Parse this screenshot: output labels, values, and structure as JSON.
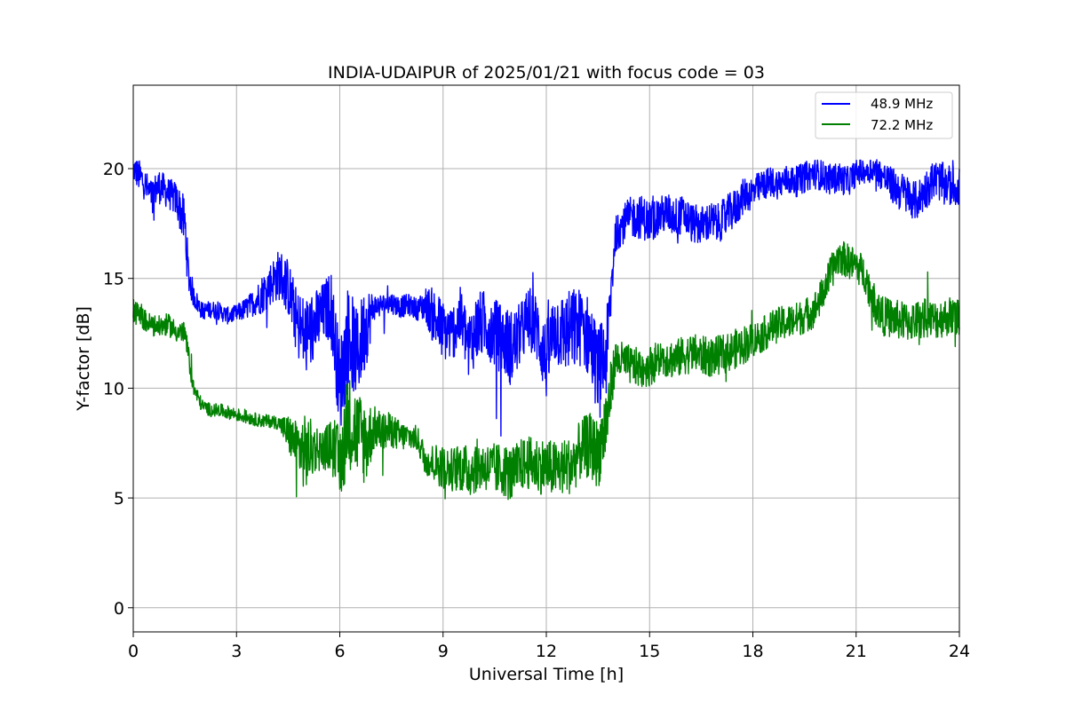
{
  "chart_data": {
    "type": "line",
    "title": "INDIA-UDAIPUR of 2025/01/21 with focus code = 03",
    "xlabel": "Universal Time [h]",
    "ylabel": "Y-factor [dB]",
    "xlim": [
      0,
      24
    ],
    "ylim": [
      -1.1,
      23.8
    ],
    "xticks": [
      0,
      3,
      6,
      9,
      12,
      15,
      18,
      21,
      24
    ],
    "yticks": [
      0,
      5,
      10,
      15,
      20
    ],
    "grid": true,
    "legend_position": "top-right",
    "series": [
      {
        "name": "48.9 MHz",
        "color": "#0000ff",
        "x": [
          0,
          0.25,
          0.5,
          0.75,
          1.0,
          1.25,
          1.5,
          1.6,
          1.75,
          2.0,
          2.25,
          2.5,
          2.75,
          3.0,
          3.25,
          3.5,
          3.75,
          4.0,
          4.25,
          4.5,
          4.75,
          5.0,
          5.25,
          5.5,
          5.75,
          6.0,
          6.25,
          6.5,
          6.75,
          7.0,
          7.25,
          7.5,
          7.75,
          8.0,
          8.25,
          8.5,
          8.75,
          9.0,
          9.25,
          9.5,
          9.75,
          10.0,
          10.25,
          10.5,
          10.75,
          11.0,
          11.25,
          11.5,
          11.75,
          12.0,
          12.25,
          12.5,
          12.75,
          13.0,
          13.25,
          13.5,
          13.75,
          14.0,
          14.25,
          14.5,
          14.75,
          15.0,
          15.25,
          15.5,
          15.75,
          16.0,
          16.25,
          16.5,
          16.75,
          17.0,
          17.25,
          17.5,
          17.75,
          18.0,
          18.25,
          18.5,
          18.75,
          19.0,
          19.25,
          19.5,
          19.75,
          20.0,
          20.25,
          20.5,
          20.75,
          21.0,
          21.25,
          21.5,
          21.75,
          22.0,
          22.25,
          22.5,
          22.75,
          23.0,
          23.25,
          23.5,
          23.75,
          24.0
        ],
        "values": [
          20.0,
          19.5,
          18.8,
          19.2,
          18.9,
          18.6,
          17.5,
          15.2,
          14.2,
          13.5,
          13.6,
          13.5,
          13.3,
          13.4,
          13.6,
          13.9,
          14.3,
          14.8,
          15.2,
          14.6,
          13.0,
          12.3,
          12.8,
          13.4,
          13.8,
          10.0,
          12.5,
          11.5,
          12.8,
          13.7,
          13.8,
          13.9,
          13.7,
          13.8,
          13.6,
          13.8,
          13.2,
          12.6,
          12.5,
          13.2,
          12.0,
          12.8,
          13.0,
          12.5,
          12.2,
          11.8,
          12.5,
          13.2,
          12.6,
          11.2,
          12.8,
          12.5,
          12.6,
          12.8,
          12.3,
          10.8,
          11.5,
          17.0,
          17.5,
          17.8,
          17.8,
          17.6,
          17.8,
          18.0,
          17.8,
          17.9,
          17.5,
          17.4,
          17.6,
          17.5,
          17.9,
          18.2,
          18.8,
          18.9,
          19.2,
          19.4,
          19.3,
          19.5,
          19.4,
          19.6,
          19.8,
          19.7,
          19.5,
          19.6,
          19.4,
          19.8,
          19.9,
          20.0,
          19.7,
          19.3,
          19.0,
          18.8,
          18.5,
          19.0,
          19.5,
          19.4,
          19.2,
          19.2
        ],
        "noise": [
          0.6,
          0.8,
          0.7,
          0.8,
          0.7,
          0.8,
          1.2,
          0.9,
          0.5,
          0.4,
          0.4,
          0.4,
          0.4,
          0.4,
          0.5,
          0.6,
          0.9,
          1.0,
          1.2,
          1.3,
          1.5,
          2.0,
          1.6,
          1.4,
          1.6,
          2.2,
          2.4,
          2.0,
          2.0,
          0.6,
          0.5,
          0.5,
          0.5,
          0.5,
          0.5,
          0.8,
          1.4,
          1.4,
          1.3,
          1.4,
          1.5,
          1.6,
          1.5,
          1.6,
          1.6,
          1.8,
          1.4,
          1.5,
          1.6,
          1.8,
          1.8,
          1.8,
          2.0,
          1.8,
          1.9,
          2.0,
          2.0,
          0.8,
          0.9,
          1.0,
          1.0,
          1.0,
          0.9,
          0.9,
          0.9,
          0.9,
          0.9,
          0.9,
          0.9,
          0.9,
          0.9,
          0.9,
          0.8,
          0.8,
          0.7,
          0.7,
          0.7,
          0.7,
          0.7,
          0.7,
          0.7,
          0.7,
          0.7,
          0.7,
          0.7,
          0.6,
          0.6,
          0.6,
          0.7,
          0.8,
          0.9,
          0.9,
          0.9,
          0.9,
          0.9,
          0.9,
          0.9,
          0.9
        ]
      },
      {
        "name": "72.2 MHz",
        "color": "#008000",
        "x": [
          0,
          0.25,
          0.5,
          0.75,
          1.0,
          1.25,
          1.5,
          1.6,
          1.75,
          2.0,
          2.25,
          2.5,
          2.75,
          3.0,
          3.25,
          3.5,
          3.75,
          4.0,
          4.25,
          4.5,
          4.75,
          5.0,
          5.25,
          5.5,
          5.75,
          6.0,
          6.25,
          6.5,
          6.75,
          7.0,
          7.25,
          7.5,
          7.75,
          8.0,
          8.25,
          8.5,
          8.75,
          9.0,
          9.25,
          9.5,
          9.75,
          10.0,
          10.25,
          10.5,
          10.75,
          11.0,
          11.25,
          11.5,
          11.75,
          12.0,
          12.25,
          12.5,
          12.75,
          13.0,
          13.25,
          13.5,
          13.75,
          14.0,
          14.25,
          14.5,
          14.75,
          15.0,
          15.25,
          15.5,
          15.75,
          16.0,
          16.25,
          16.5,
          16.75,
          17.0,
          17.25,
          17.5,
          17.75,
          18.0,
          18.25,
          18.5,
          18.75,
          19.0,
          19.25,
          19.5,
          19.75,
          20.0,
          20.25,
          20.5,
          20.75,
          21.0,
          21.25,
          21.5,
          21.75,
          22.0,
          22.25,
          22.5,
          22.75,
          23.0,
          23.25,
          23.5,
          23.75,
          24.0
        ],
        "values": [
          13.5,
          13.2,
          12.9,
          12.8,
          12.9,
          12.6,
          12.5,
          11.5,
          10.0,
          9.2,
          9.0,
          9.0,
          8.9,
          8.8,
          8.7,
          8.6,
          8.5,
          8.5,
          8.4,
          7.9,
          7.4,
          7.0,
          7.3,
          7.2,
          7.4,
          6.5,
          8.5,
          8.0,
          7.5,
          8.2,
          8.0,
          8.1,
          7.8,
          7.8,
          7.7,
          6.7,
          6.6,
          6.4,
          6.3,
          6.4,
          6.2,
          6.5,
          6.4,
          6.3,
          6.3,
          6.0,
          6.5,
          6.6,
          6.5,
          6.4,
          6.3,
          6.4,
          6.5,
          7.2,
          7.4,
          7.0,
          8.5,
          11.3,
          11.2,
          11.0,
          10.9,
          11.0,
          11.3,
          11.4,
          11.3,
          11.5,
          11.6,
          11.5,
          11.4,
          11.5,
          11.6,
          11.8,
          12.0,
          12.2,
          12.4,
          12.7,
          12.9,
          13.0,
          13.1,
          13.3,
          13.5,
          14.2,
          15.2,
          16.0,
          15.8,
          15.6,
          15.2,
          14.0,
          13.3,
          13.2,
          13.1,
          13.0,
          13.1,
          13.2,
          13.1,
          13.2,
          13.3,
          13.2
        ],
        "noise": [
          0.6,
          0.5,
          0.5,
          0.5,
          0.5,
          0.5,
          0.5,
          0.5,
          0.4,
          0.3,
          0.3,
          0.3,
          0.3,
          0.3,
          0.3,
          0.3,
          0.3,
          0.3,
          0.3,
          0.9,
          1.1,
          1.8,
          1.2,
          0.9,
          1.2,
          1.8,
          2.2,
          2.0,
          2.0,
          1.0,
          0.9,
          0.8,
          0.7,
          0.6,
          0.6,
          0.7,
          0.9,
          1.0,
          1.0,
          1.1,
          1.2,
          1.2,
          1.1,
          1.2,
          1.2,
          1.3,
          1.2,
          1.2,
          1.3,
          1.3,
          1.3,
          1.3,
          1.3,
          1.4,
          1.5,
          1.6,
          1.8,
          0.9,
          0.9,
          0.9,
          0.9,
          0.9,
          0.9,
          0.9,
          0.9,
          0.9,
          0.9,
          0.9,
          0.9,
          0.9,
          0.9,
          0.9,
          0.9,
          0.8,
          0.8,
          0.8,
          0.8,
          0.8,
          0.8,
          0.8,
          0.8,
          0.8,
          0.8,
          0.8,
          0.8,
          0.8,
          0.8,
          0.9,
          0.9,
          0.9,
          0.9,
          0.9,
          0.9,
          0.9,
          0.9,
          0.9,
          0.9,
          0.9
        ]
      }
    ]
  }
}
